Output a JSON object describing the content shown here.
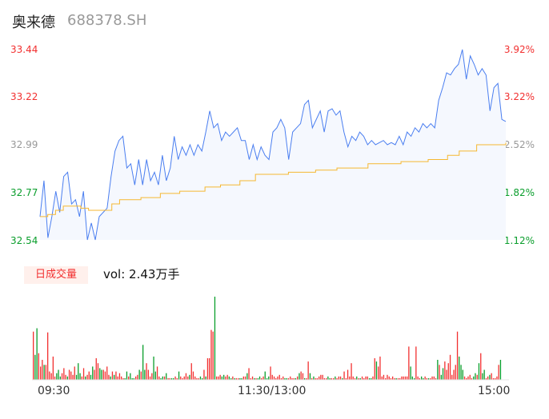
{
  "header": {
    "name": "奥来德",
    "code": "688378.SH"
  },
  "chart_data": [
    {
      "type": "line",
      "ylim": [
        32.54,
        33.44
      ],
      "y_ticks_left": [
        "33.44",
        "33.22",
        "32.99",
        "32.77",
        "32.54"
      ],
      "y_ticks_right": [
        "3.92%",
        "3.22%",
        "2.52%",
        "1.82%",
        "1.12%"
      ],
      "tick_colors": [
        "#f23030",
        "#f23030",
        "#999999",
        "#0a9e2c",
        "#0a9e2c"
      ],
      "x_ticks": [
        "09:30",
        "11:30/13:00",
        "15:00"
      ],
      "price_color": "#4a7ef0",
      "avg_color": "#f5b731",
      "price": [
        32.65,
        32.82,
        32.55,
        32.65,
        32.77,
        32.67,
        32.84,
        32.86,
        32.71,
        32.73,
        32.65,
        32.77,
        32.54,
        32.62,
        32.54,
        32.65,
        32.67,
        32.69,
        32.84,
        32.96,
        33.01,
        33.03,
        32.88,
        32.9,
        32.8,
        32.92,
        32.8,
        32.92,
        32.82,
        32.86,
        32.8,
        32.94,
        32.82,
        32.88,
        33.03,
        32.92,
        32.98,
        32.94,
        32.99,
        32.94,
        32.99,
        32.96,
        33.05,
        33.15,
        33.07,
        33.09,
        33.01,
        33.05,
        33.03,
        33.05,
        33.07,
        33.01,
        33.01,
        32.92,
        32.99,
        32.92,
        32.98,
        32.94,
        32.92,
        33.05,
        33.07,
        33.11,
        33.07,
        32.92,
        33.05,
        33.07,
        33.09,
        33.18,
        33.2,
        33.07,
        33.11,
        33.15,
        33.05,
        33.15,
        33.16,
        33.13,
        33.15,
        33.05,
        32.98,
        33.03,
        33.01,
        33.05,
        33.03,
        32.99,
        33.01,
        32.99,
        33.0,
        33.01,
        32.99,
        33.0,
        32.99,
        33.03,
        32.99,
        33.05,
        33.03,
        33.07,
        33.05,
        33.09,
        33.07,
        33.09,
        33.07,
        33.2,
        33.26,
        33.33,
        33.32,
        33.35,
        33.37,
        33.44,
        33.3,
        33.41,
        33.37,
        33.32,
        33.35,
        33.32,
        33.15,
        33.26,
        33.28,
        33.11,
        33.1
      ],
      "avg": [
        [
          0,
          32.65
        ],
        [
          4,
          32.66
        ],
        [
          8,
          32.68
        ],
        [
          12,
          32.7
        ],
        [
          21,
          32.69
        ],
        [
          25,
          32.68
        ],
        [
          33,
          32.68
        ],
        [
          37,
          32.71
        ],
        [
          41,
          32.73
        ],
        [
          52,
          32.74
        ],
        [
          62,
          32.76
        ],
        [
          72,
          32.77
        ],
        [
          85,
          32.79
        ],
        [
          93,
          32.8
        ],
        [
          103,
          32.82
        ],
        [
          111,
          32.85
        ],
        [
          128,
          32.86
        ],
        [
          142,
          32.87
        ],
        [
          153,
          32.88
        ],
        [
          169,
          32.9
        ],
        [
          186,
          32.91
        ],
        [
          200,
          32.92
        ],
        [
          210,
          32.94
        ],
        [
          216,
          32.96
        ],
        [
          225,
          32.99
        ],
        [
          235,
          32.99
        ],
        [
          240,
          33.0
        ]
      ]
    },
    {
      "type": "bar",
      "label": "日成交量",
      "vol_text": "vol: 2.43万手",
      "up_color": "#f23030",
      "down_color": "#0a9e2c",
      "volumes": [
        58,
        30,
        62,
        32,
        16,
        24,
        18,
        18,
        57,
        10,
        8,
        28,
        4,
        8,
        12,
        4,
        8,
        14,
        6,
        4,
        12,
        10,
        6,
        16,
        6,
        20,
        8,
        4,
        14,
        4,
        6,
        10,
        6,
        16,
        12,
        26,
        20,
        14,
        12,
        12,
        10,
        16,
        6,
        4,
        10,
        6,
        10,
        4,
        8,
        4,
        2,
        2,
        10,
        4,
        8,
        2,
        2,
        4,
        6,
        12,
        10,
        42,
        12,
        20,
        12,
        4,
        8,
        28,
        10,
        16,
        4,
        2,
        4,
        4,
        8,
        2,
        2,
        2,
        2,
        4,
        2,
        10,
        4,
        2,
        4,
        8,
        4,
        6,
        20,
        10,
        4,
        2,
        2,
        4,
        2,
        12,
        4,
        26,
        26,
        60,
        58,
        100,
        4,
        4,
        6,
        4,
        6,
        4,
        6,
        4,
        2,
        4,
        2,
        2,
        2,
        2,
        2,
        4,
        4,
        8,
        14,
        2,
        4,
        2,
        2,
        2,
        4,
        2,
        4,
        10,
        2,
        4,
        16,
        6,
        4,
        2,
        4,
        6,
        2,
        4,
        2,
        2,
        2,
        4,
        2,
        2,
        2,
        4,
        8,
        10,
        8,
        2,
        2,
        22,
        8,
        2,
        4,
        2,
        2,
        4,
        6,
        6,
        2,
        2,
        4,
        2,
        2,
        2,
        4,
        2,
        4,
        4,
        2,
        10,
        2,
        12,
        4,
        20,
        4,
        2,
        4,
        2,
        2,
        4,
        2,
        4,
        4,
        2,
        2,
        4,
        26,
        22,
        16,
        28,
        4,
        6,
        2,
        6,
        4,
        2,
        4,
        2,
        2,
        2,
        2,
        4,
        4,
        4,
        4,
        40,
        16,
        4,
        2,
        40,
        4,
        2,
        4,
        2,
        4,
        2,
        2,
        2,
        4,
        4,
        2,
        24,
        18,
        6,
        14,
        22,
        12,
        20,
        30,
        6,
        12,
        18,
        58,
        28,
        18,
        12,
        4,
        2,
        4,
        6,
        2,
        4,
        8,
        6,
        20,
        32,
        8,
        12,
        2,
        4,
        6,
        8,
        2,
        2,
        4,
        18,
        24
      ],
      "dirs": "ugguuuguuuuuuggguuuguuuuggguuguugguuugguuuuguguuuuugguggguugugguuuugguugguguugguuguuuuuguuuuugguguuuuguuugguugguguugguuguuugugguuggguuuuuuuugguuuuguguuguuguguuuuuuugguuguuuguuuuuuuguguuuugguuguuuuuuuuuuguuuuuuuggguuugguuguuuugugguuuuuuuuggguuuuuggugugguuguuuuuguugugguuuu"
    }
  ]
}
